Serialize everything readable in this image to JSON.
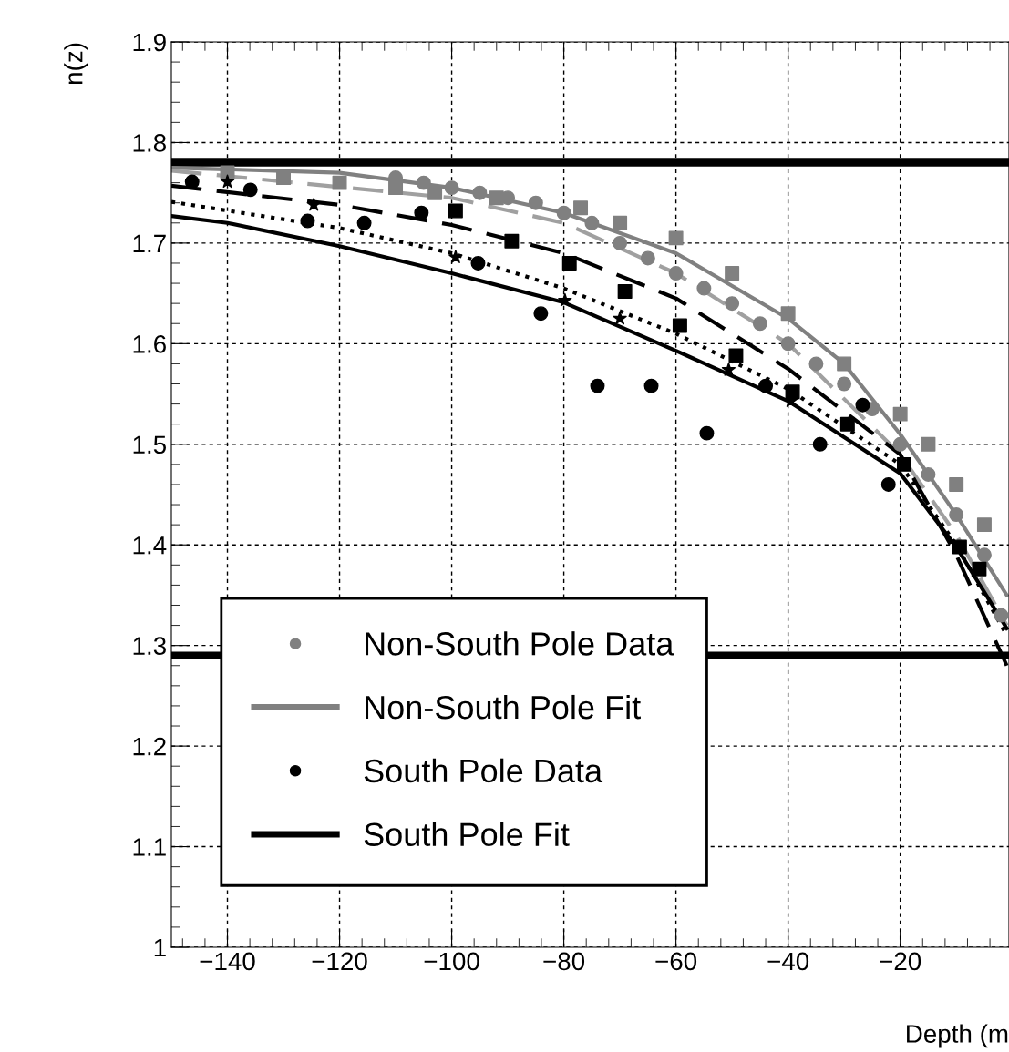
{
  "chart_data": {
    "type": "line",
    "xlabel": "Depth (m",
    "ylabel": "n(z)",
    "xlim": [
      -150,
      -0.6
    ],
    "ylim": [
      1,
      1.9
    ],
    "xticks": [
      {
        "value": -140,
        "label": "−140"
      },
      {
        "value": -120,
        "label": "−120"
      },
      {
        "value": -100,
        "label": "−100"
      },
      {
        "value": -80,
        "label": "−80"
      },
      {
        "value": -60,
        "label": "−60"
      },
      {
        "value": -40,
        "label": "−40"
      },
      {
        "value": -20,
        "label": "−20"
      }
    ],
    "yticks": [
      1,
      1.1,
      1.2,
      1.3,
      1.4,
      1.5,
      1.6,
      1.7,
      1.8,
      1.9
    ],
    "grid": true,
    "legend": "bottom left",
    "ref_lines": [
      {
        "axis": "y",
        "value": 1.78,
        "color": "#000000"
      },
      {
        "axis": "y",
        "value": 1.29,
        "color": "#000000"
      }
    ],
    "series": [
      {
        "name": "Non-South Pole Data",
        "type": "scatter",
        "marker": "circle",
        "color": "#808080",
        "x": [
          -110,
          -105,
          -100,
          -95,
          -90,
          -85,
          -80,
          -75,
          -70,
          -65,
          -60,
          -55,
          -50,
          -45,
          -40,
          -35,
          -30,
          -25,
          -20,
          -15,
          -10,
          -5,
          -2
        ],
        "values": [
          1.765,
          1.76,
          1.755,
          1.75,
          1.745,
          1.74,
          1.73,
          1.72,
          1.7,
          1.685,
          1.67,
          1.655,
          1.64,
          1.62,
          1.6,
          1.58,
          1.56,
          1.535,
          1.5,
          1.47,
          1.43,
          1.39,
          1.33
        ]
      },
      {
        "type": "scatter",
        "marker": "square",
        "color": "#808080",
        "x": [
          -140,
          -130,
          -120,
          -110,
          -103,
          -92,
          -77,
          -70,
          -60,
          -50,
          -40,
          -30,
          -20,
          -15,
          -10,
          -5
        ],
        "values": [
          1.77,
          1.765,
          1.76,
          1.755,
          1.75,
          1.745,
          1.735,
          1.72,
          1.705,
          1.67,
          1.63,
          1.58,
          1.53,
          1.5,
          1.46,
          1.42
        ]
      },
      {
        "name": "Non-South Pole Fit",
        "line_style": "solid",
        "color": "#808080",
        "x": [
          -150,
          -120,
          -100,
          -80,
          -60,
          -40,
          -30,
          -20,
          -10,
          -1
        ],
        "values": [
          1.775,
          1.77,
          1.755,
          1.73,
          1.69,
          1.625,
          1.58,
          1.51,
          1.43,
          1.35
        ]
      },
      {
        "line_style": "dashed",
        "color": "#a0a0a0",
        "x": [
          -150,
          -100,
          -80,
          -60,
          -40,
          -20,
          -10,
          -1
        ],
        "values": [
          1.772,
          1.745,
          1.72,
          1.67,
          1.6,
          1.49,
          1.41,
          1.32
        ]
      },
      {
        "name": "South Pole Data",
        "type": "scatter",
        "marker": "circle",
        "color": "#000000",
        "x": [
          -146.3,
          -135.9,
          -125.7,
          -115.6,
          -105.4,
          -95.3,
          -84.1,
          -74,
          -64.4,
          -54.5,
          -44,
          -34.3,
          -26.7,
          -22.1
        ],
        "values": [
          1.761,
          1.753,
          1.722,
          1.72,
          1.73,
          1.68,
          1.63,
          1.558,
          1.558,
          1.511,
          1.558,
          1.5,
          1.539,
          1.46
        ]
      },
      {
        "type": "scatter",
        "marker": "square",
        "color": "#000000",
        "x": [
          -99.3,
          -89.3,
          -79,
          -69.1,
          -59.3,
          -49.3,
          -39.2,
          -29.4,
          -19.3,
          -9.4,
          -5.9
        ],
        "values": [
          1.732,
          1.702,
          1.68,
          1.652,
          1.618,
          1.588,
          1.552,
          1.52,
          1.48,
          1.398,
          1.376
        ]
      },
      {
        "type": "scatter",
        "marker": "star",
        "color": "#000000",
        "x": [
          -140,
          -124.6,
          -99.3,
          -79.8,
          -70,
          -50.6,
          -39.5
        ],
        "values": [
          1.761,
          1.738,
          1.686,
          1.643,
          1.625,
          1.574,
          1.543
        ]
      },
      {
        "name": "South Pole Fit",
        "line_style": "solid",
        "color": "#000000",
        "x": [
          -150,
          -140,
          -120,
          -100,
          -80,
          -60,
          -40,
          -20,
          -10,
          -1
        ],
        "values": [
          1.727,
          1.72,
          1.697,
          1.67,
          1.641,
          1.593,
          1.543,
          1.471,
          1.398,
          1.317
        ]
      },
      {
        "line_style": "dotted",
        "color": "#000000",
        "x": [
          -150,
          -120,
          -100,
          -80,
          -60,
          -40,
          -20,
          -10,
          -1
        ],
        "values": [
          1.741,
          1.715,
          1.69,
          1.655,
          1.61,
          1.555,
          1.48,
          1.4,
          1.31
        ]
      },
      {
        "line_style": "dashed",
        "color": "#000000",
        "x": [
          -150,
          -120,
          -100,
          -80,
          -60,
          -40,
          -20,
          -10,
          -1
        ],
        "values": [
          1.757,
          1.738,
          1.718,
          1.69,
          1.645,
          1.575,
          1.49,
          1.39,
          1.28
        ]
      }
    ]
  }
}
